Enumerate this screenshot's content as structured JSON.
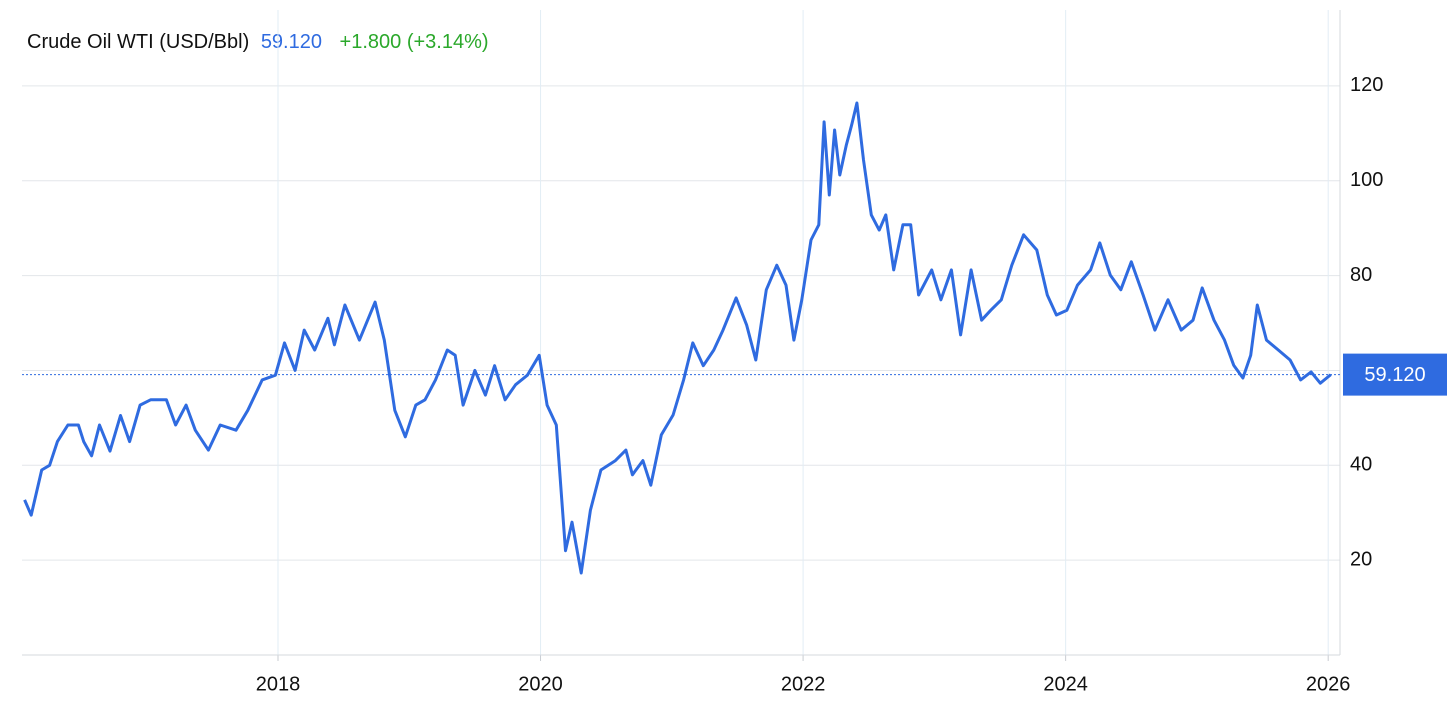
{
  "chart_data": {
    "type": "line",
    "title": "Crude Oil WTI (USD/Bbl)",
    "current_price": {
      "value": 59.12,
      "label": "59.120"
    },
    "change_label": "+1.800 (+3.14%)",
    "color": "#2f6be0",
    "xlim": [
      2016.05,
      2026.09
    ],
    "ylim": [
      0,
      136
    ],
    "xticks": [
      2018,
      2020,
      2022,
      2024,
      2026
    ],
    "yticks": [
      20,
      40,
      60,
      80,
      100,
      120
    ],
    "grid": true,
    "x": [
      2016.07,
      2016.12,
      2016.2,
      2016.26,
      2016.32,
      2016.4,
      2016.48,
      2016.52,
      2016.58,
      2016.64,
      2016.72,
      2016.8,
      2016.87,
      2016.95,
      2017.03,
      2017.15,
      2017.22,
      2017.3,
      2017.37,
      2017.47,
      2017.56,
      2017.68,
      2017.77,
      2017.88,
      2017.98,
      2018.05,
      2018.13,
      2018.2,
      2018.28,
      2018.38,
      2018.43,
      2018.51,
      2018.62,
      2018.74,
      2018.81,
      2018.89,
      2018.97,
      2019.05,
      2019.12,
      2019.2,
      2019.29,
      2019.35,
      2019.41,
      2019.5,
      2019.58,
      2019.65,
      2019.73,
      2019.81,
      2019.9,
      2019.99,
      2020.05,
      2020.12,
      2020.19,
      2020.24,
      2020.31,
      2020.38,
      2020.46,
      2020.57,
      2020.65,
      2020.7,
      2020.78,
      2020.84,
      2020.92,
      2021.01,
      2021.09,
      2021.16,
      2021.24,
      2021.32,
      2021.39,
      2021.49,
      2021.57,
      2021.64,
      2021.72,
      2021.8,
      2021.87,
      2021.93,
      2021.99,
      2022.06,
      2022.12,
      2022.16,
      2022.2,
      2022.24,
      2022.28,
      2022.33,
      2022.37,
      2022.41,
      2022.46,
      2022.52,
      2022.58,
      2022.63,
      2022.69,
      2022.76,
      2022.82,
      2022.88,
      2022.98,
      2023.05,
      2023.13,
      2023.2,
      2023.28,
      2023.36,
      2023.43,
      2023.51,
      2023.59,
      2023.68,
      2023.78,
      2023.86,
      2023.93,
      2024.01,
      2024.09,
      2024.19,
      2024.26,
      2024.34,
      2024.42,
      2024.5,
      2024.59,
      2024.68,
      2024.78,
      2024.88,
      2024.97,
      2025.04,
      2025.13,
      2025.21,
      2025.28,
      2025.35,
      2025.41,
      2025.46,
      2025.53,
      2025.62,
      2025.71,
      2025.79,
      2025.87,
      2025.94,
      2026.02
    ],
    "values": [
      32.7,
      29.5,
      39,
      40,
      45,
      48.5,
      48.5,
      45,
      42,
      48.5,
      43,
      50.5,
      45,
      52.7,
      53.8,
      53.8,
      48.5,
      52.7,
      47.4,
      43.2,
      48.5,
      47.4,
      51.6,
      58,
      59,
      65.8,
      60,
      68.5,
      64.3,
      71,
      65.4,
      73.8,
      66.4,
      74.4,
      66.4,
      51.6,
      46,
      52.7,
      53.8,
      58,
      64.3,
      63.2,
      52.7,
      60,
      54.8,
      61,
      53.8,
      57,
      59,
      63.2,
      52.7,
      48.5,
      22,
      28,
      17.3,
      30.5,
      39,
      41,
      43.2,
      38,
      41,
      35.8,
      46.4,
      50.6,
      58,
      65.8,
      61,
      64.3,
      68.5,
      75.3,
      69.6,
      62.2,
      77,
      82.2,
      78,
      66.4,
      74.9,
      87.5,
      90.7,
      112.4,
      97,
      110.7,
      101.2,
      107.6,
      111.8,
      116.4,
      104.4,
      92.8,
      89.6,
      92.8,
      81.2,
      90.7,
      90.7,
      75.9,
      81.2,
      74.9,
      81.2,
      67.5,
      81.2,
      70.6,
      72.7,
      74.9,
      82.2,
      88.6,
      85.4,
      75.9,
      71.7,
      72.7,
      78,
      81.2,
      86.9,
      80.1,
      77,
      82.9,
      75.9,
      68.5,
      74.9,
      68.5,
      70.6,
      77.4,
      70.6,
      66.4,
      61.1,
      58.4,
      63.2,
      73.8,
      66.4,
      64.3,
      62.2,
      58,
      59.7,
      57.3,
      59.12
    ]
  }
}
